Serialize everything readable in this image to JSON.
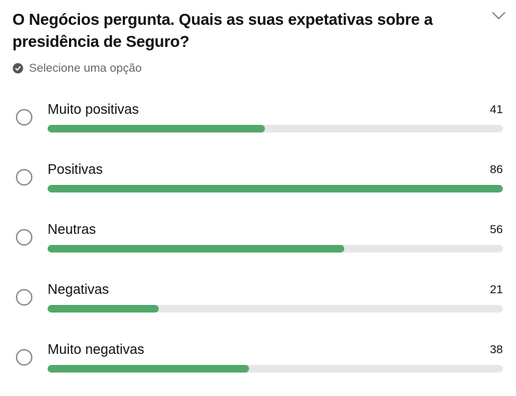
{
  "poll": {
    "question": "O Negócios pergunta. Quais as suas expetativas sobre a presidência de Seguro?",
    "instruction": "Selecione uma opção",
    "accent_color": "#52a86a",
    "options": [
      {
        "label": "Muito positivas",
        "votes": "41",
        "value": 41
      },
      {
        "label": "Positivas",
        "votes": "86",
        "value": 86
      },
      {
        "label": "Neutras",
        "votes": "56",
        "value": 56
      },
      {
        "label": "Negativas",
        "votes": "21",
        "value": 21
      },
      {
        "label": "Muito negativas",
        "votes": "38",
        "value": 38
      }
    ]
  }
}
